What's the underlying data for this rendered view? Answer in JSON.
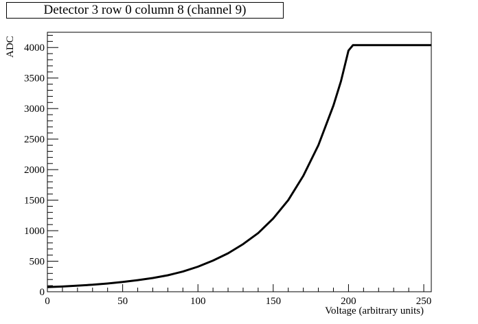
{
  "chart_data": {
    "type": "line",
    "title": "Detector 3 row 0 column 8 (channel 9)",
    "xlabel": "Voltage (arbitrary units)",
    "ylabel": "ADC",
    "xlim": [
      0,
      255
    ],
    "ylim": [
      0,
      4250
    ],
    "xticks": [
      0,
      50,
      100,
      150,
      200,
      250
    ],
    "yticks": [
      0,
      500,
      1000,
      1500,
      2000,
      2500,
      3000,
      3500,
      4000
    ],
    "grid": false,
    "legend": "none",
    "line_color": "#000000",
    "series": [
      {
        "x": [
          0,
          10,
          20,
          30,
          40,
          50,
          60,
          70,
          80,
          90,
          100,
          110,
          120,
          130,
          140,
          150,
          160,
          170,
          180,
          190,
          195,
          200,
          203,
          205,
          210,
          220,
          230,
          240,
          250,
          255
        ],
        "values": [
          75,
          85,
          100,
          115,
          135,
          160,
          190,
          225,
          270,
          330,
          410,
          510,
          630,
          780,
          960,
          1200,
          1500,
          1900,
          2400,
          3050,
          3450,
          3950,
          4040,
          4040,
          4040,
          4040,
          4040,
          4040,
          4040,
          4040
        ]
      }
    ]
  }
}
